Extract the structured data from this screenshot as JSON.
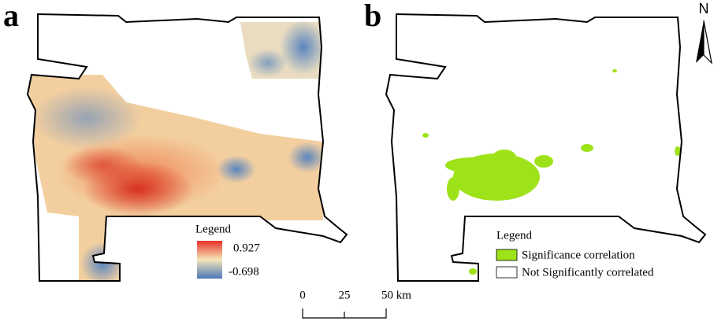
{
  "panel_a": {
    "label": "a",
    "legend": {
      "title": "Legend",
      "max": "0.927",
      "min": "-0.698"
    }
  },
  "panel_b": {
    "label": "b",
    "legend": {
      "title": "Legend",
      "items": [
        "Significance correlation",
        "Not Significantly correlated"
      ]
    }
  },
  "north_arrow": "N",
  "scale_bar": {
    "ticks": [
      "0",
      "25",
      "50 km"
    ]
  }
}
